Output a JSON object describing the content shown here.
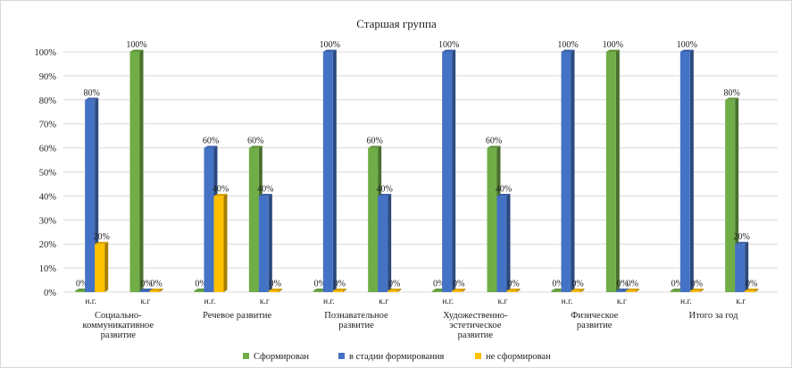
{
  "chart_data": {
    "type": "bar",
    "title": "Старшая группа",
    "ylim": [
      0,
      100
    ],
    "yticks": [
      "0%",
      "10%",
      "20%",
      "30%",
      "40%",
      "50%",
      "60%",
      "70%",
      "80%",
      "90%",
      "100%"
    ],
    "grid": true,
    "legend_position": "bottom",
    "series": [
      {
        "name": "Сформирован",
        "color": "#70ad47"
      },
      {
        "name": "в стадии формирования",
        "color": "#4472c4"
      },
      {
        "name": "не сформирован",
        "color": "#ffc000"
      }
    ],
    "groups": [
      {
        "label": [
          "Социально-",
          "коммуникативное",
          "развитие"
        ],
        "subgroups": [
          {
            "label": "н.г.",
            "values": [
              0,
              80,
              20
            ]
          },
          {
            "label": "к.г",
            "values": [
              100,
              0,
              0
            ]
          }
        ]
      },
      {
        "label": [
          "Речевое развитие"
        ],
        "subgroups": [
          {
            "label": "н.г.",
            "values": [
              0,
              60,
              40
            ]
          },
          {
            "label": "к.г",
            "values": [
              60,
              40,
              0
            ]
          }
        ]
      },
      {
        "label": [
          "Познавательное",
          "развитие"
        ],
        "subgroups": [
          {
            "label": "н.г.",
            "values": [
              0,
              100,
              0
            ]
          },
          {
            "label": "к.г",
            "values": [
              60,
              40,
              0
            ]
          }
        ]
      },
      {
        "label": [
          "Художественно-",
          "эстетическое",
          "развитие"
        ],
        "subgroups": [
          {
            "label": "н.г.",
            "values": [
              0,
              100,
              0
            ]
          },
          {
            "label": "к.г",
            "values": [
              60,
              40,
              0
            ]
          }
        ]
      },
      {
        "label": [
          "Физическое",
          "развитие"
        ],
        "subgroups": [
          {
            "label": "н.г.",
            "values": [
              0,
              100,
              0
            ]
          },
          {
            "label": "к.г",
            "values": [
              100,
              0,
              0
            ]
          }
        ]
      },
      {
        "label": [
          "Итого за год"
        ],
        "subgroups": [
          {
            "label": "н.г.",
            "values": [
              0,
              100,
              0
            ]
          },
          {
            "label": "к.г",
            "values": [
              80,
              20,
              0
            ]
          }
        ]
      }
    ]
  }
}
